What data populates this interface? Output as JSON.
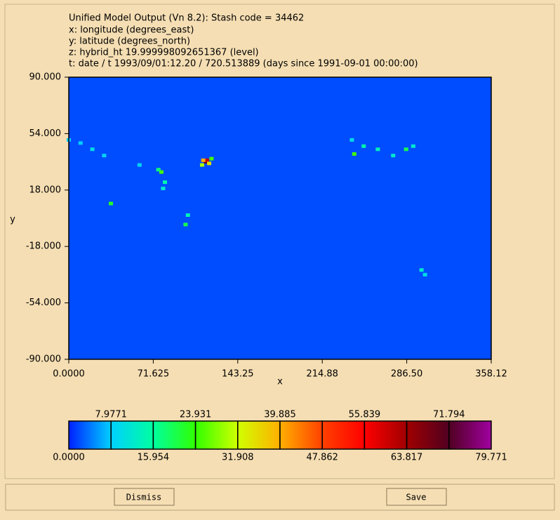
{
  "header": {
    "lines": [
      "Unified Model Output (Vn 8.2): Stash code = 34462",
      "x: longitude  (degrees_east)",
      "y: latitude  (degrees_north)",
      "z: hybrid_ht 19.999998092651367 (level)",
      "t: date / t 1993/09/01:12.20 / 720.513889 (days since 1991-09-01 00:00:00)"
    ]
  },
  "chart_data": {
    "type": "heatmap",
    "x_label": "x",
    "y_label": "y",
    "xlim": [
      0,
      358.12
    ],
    "ylim": [
      -90,
      90
    ],
    "xticks": [
      {
        "value": 0,
        "label": "0.0000"
      },
      71.625,
      143.25,
      214.88,
      {
        "value": 286.5,
        "label": "286.50"
      },
      358.12
    ],
    "yticks": [
      {
        "value": 90,
        "label": "90.000"
      },
      {
        "value": 54,
        "label": "54.000"
      },
      {
        "value": 18,
        "label": "18.000"
      },
      {
        "value": -18,
        "label": "-18.000"
      },
      {
        "value": -54,
        "label": "-54.000"
      },
      {
        "value": -90,
        "label": "-90.000"
      }
    ],
    "background_value": 2,
    "x": [
      116,
      117,
      114,
      119,
      113,
      121,
      78.5,
      76,
      81.5,
      80,
      35.7,
      10,
      20,
      30,
      0,
      99,
      101,
      242,
      250,
      262,
      275,
      286,
      292,
      299,
      302,
      240,
      60
    ],
    "y": [
      36,
      37,
      37,
      35,
      34,
      38,
      29.5,
      31,
      23,
      19,
      9.4,
      48,
      44,
      40,
      50,
      -4,
      2,
      41,
      46,
      44,
      40,
      44,
      46,
      -33,
      -36,
      50,
      34
    ],
    "values": [
      70,
      60,
      40,
      35,
      30,
      25,
      25,
      18,
      15,
      12,
      22,
      8,
      10,
      9,
      8,
      20,
      14,
      25,
      15,
      14,
      12,
      20,
      12,
      12,
      10,
      10,
      9
    ],
    "colorbar": {
      "ticks": [
        {
          "value": 0,
          "label": "0.0000"
        },
        7.9771,
        15.954,
        23.931,
        31.908,
        39.885,
        47.862,
        55.839,
        63.817,
        71.794,
        79.771
      ],
      "colors": [
        "#0020ff",
        "#00d0ff",
        "#00ffa0",
        "#30ff00",
        "#d0ff00",
        "#ffb000",
        "#ff4000",
        "#ff0000",
        "#a00000",
        "#500020",
        "#a000a0"
      ]
    }
  },
  "buttons": [
    "Dismiss",
    "Save"
  ]
}
